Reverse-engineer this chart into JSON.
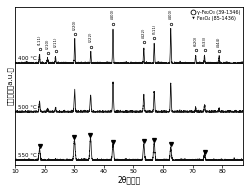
{
  "xlabel": "2θ（度）",
  "ylabel": "相对强度（a.u.）",
  "xlim": [
    10,
    87
  ],
  "ylim": [
    -0.1,
    3.8
  ],
  "labels": [
    "550 °C",
    "500 °C",
    "400 °C"
  ],
  "offsets": [
    2.4,
    1.2,
    0.0
  ],
  "background_color": "#ffffff",
  "peak_color": "#111111",
  "legend_circle_label": "γ-Fe₂O₃ (39-1346)",
  "legend_filled_label": "Fe₃O₄ (85-1436)",
  "gamma_peaks": [
    18.3,
    21.0,
    23.7,
    30.2,
    35.6,
    43.1,
    53.5,
    57.0,
    62.6,
    71.0,
    74.0,
    78.9
  ],
  "gamma_amps_550": [
    0.22,
    0.13,
    0.16,
    0.6,
    0.28,
    0.85,
    0.38,
    0.48,
    0.85,
    0.2,
    0.19,
    0.17
  ],
  "gamma_amps_500": [
    0.13,
    0.08,
    0.1,
    0.32,
    0.16,
    0.55,
    0.22,
    0.3,
    0.55,
    0.11,
    0.1,
    0.09
  ],
  "gamma_labels": [
    "(111)",
    "(210)",
    "(211)",
    "(220)",
    "(222)",
    "(400)",
    "(422)",
    "(511)",
    "(400)",
    "(620)",
    "(533)",
    "(444)"
  ],
  "fe3o4_peaks": [
    18.3,
    30.1,
    35.5,
    43.1,
    53.5,
    57.0,
    62.6,
    74.0
  ],
  "fe3o4_amps": [
    0.28,
    0.5,
    0.55,
    0.38,
    0.4,
    0.42,
    0.32,
    0.14
  ],
  "noise_seed": 42,
  "xticks": [
    10,
    20,
    30,
    40,
    50,
    60,
    70,
    80
  ]
}
